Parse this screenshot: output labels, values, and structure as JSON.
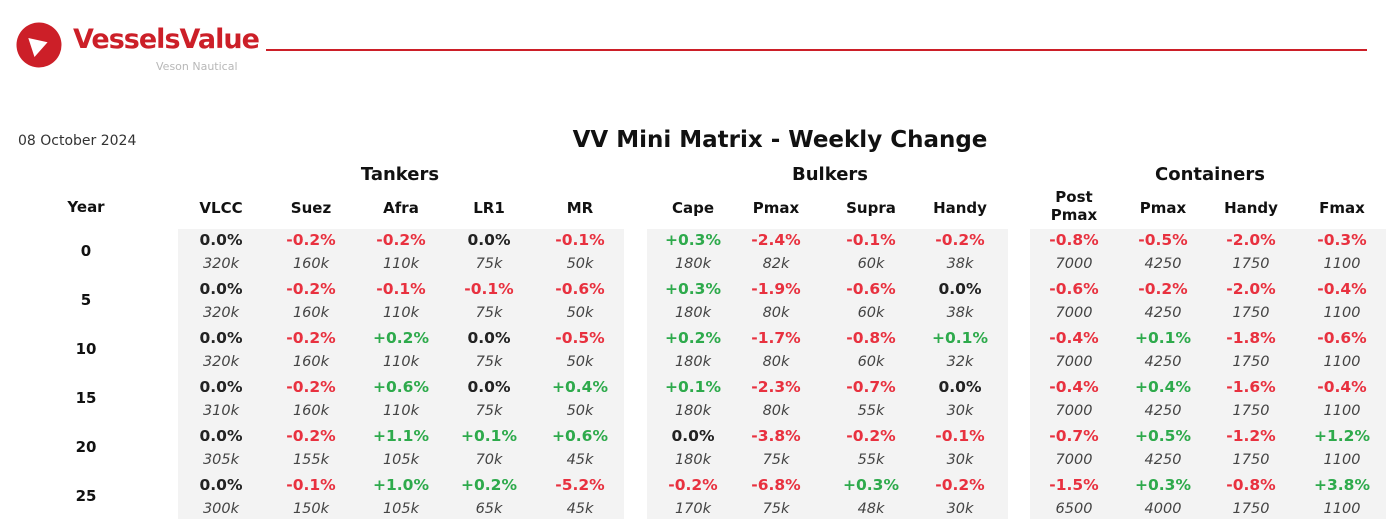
{
  "brand": {
    "name": "VesselsValue",
    "sub": "Veson Nautical",
    "accent": "#cc1f28"
  },
  "date": "08 October 2024",
  "title": "VV Mini Matrix - Weekly Change",
  "year_header": "Year",
  "colors": {
    "negative": "#e8313f",
    "positive": "#2eaa4c",
    "neutral": "#222222",
    "panel": "#f3f3f3"
  },
  "groups": [
    {
      "name": "Tankers",
      "columns": [
        "VLCC",
        "Suez",
        "Afra",
        "LR1",
        "MR"
      ]
    },
    {
      "name": "Bulkers",
      "columns": [
        "Cape",
        "Pmax",
        "Supra",
        "Handy"
      ]
    },
    {
      "name": "Containers",
      "columns": [
        "Post Pmax",
        "Pmax",
        "Handy",
        "Fmax"
      ]
    }
  ],
  "rows": [
    {
      "year": "0",
      "changes": [
        "0.0%",
        "-0.2%",
        "-0.2%",
        "0.0%",
        "-0.1%",
        "+0.3%",
        "-2.4%",
        "-0.1%",
        "-0.2%",
        "-0.8%",
        "-0.5%",
        "-2.0%",
        "-0.3%"
      ],
      "sizes": [
        "320k",
        "160k",
        "110k",
        "75k",
        "50k",
        "180k",
        "82k",
        "60k",
        "38k",
        "7000",
        "4250",
        "1750",
        "1100"
      ]
    },
    {
      "year": "5",
      "changes": [
        "0.0%",
        "-0.2%",
        "-0.1%",
        "-0.1%",
        "-0.6%",
        "+0.3%",
        "-1.9%",
        "-0.6%",
        "0.0%",
        "-0.6%",
        "-0.2%",
        "-2.0%",
        "-0.4%"
      ],
      "sizes": [
        "320k",
        "160k",
        "110k",
        "75k",
        "50k",
        "180k",
        "80k",
        "60k",
        "38k",
        "7000",
        "4250",
        "1750",
        "1100"
      ]
    },
    {
      "year": "10",
      "changes": [
        "0.0%",
        "-0.2%",
        "+0.2%",
        "0.0%",
        "-0.5%",
        "+0.2%",
        "-1.7%",
        "-0.8%",
        "+0.1%",
        "-0.4%",
        "+0.1%",
        "-1.8%",
        "-0.6%"
      ],
      "sizes": [
        "320k",
        "160k",
        "110k",
        "75k",
        "50k",
        "180k",
        "80k",
        "60k",
        "32k",
        "7000",
        "4250",
        "1750",
        "1100"
      ]
    },
    {
      "year": "15",
      "changes": [
        "0.0%",
        "-0.2%",
        "+0.6%",
        "0.0%",
        "+0.4%",
        "+0.1%",
        "-2.3%",
        "-0.7%",
        "0.0%",
        "-0.4%",
        "+0.4%",
        "-1.6%",
        "-0.4%"
      ],
      "sizes": [
        "310k",
        "160k",
        "110k",
        "75k",
        "50k",
        "180k",
        "80k",
        "55k",
        "30k",
        "7000",
        "4250",
        "1750",
        "1100"
      ]
    },
    {
      "year": "20",
      "changes": [
        "0.0%",
        "-0.2%",
        "+1.1%",
        "+0.1%",
        "+0.6%",
        "0.0%",
        "-3.8%",
        "-0.2%",
        "-0.1%",
        "-0.7%",
        "+0.5%",
        "-1.2%",
        "+1.2%"
      ],
      "sizes": [
        "305k",
        "155k",
        "105k",
        "70k",
        "45k",
        "180k",
        "75k",
        "55k",
        "30k",
        "7000",
        "4250",
        "1750",
        "1100"
      ]
    },
    {
      "year": "25",
      "changes": [
        "0.0%",
        "-0.1%",
        "+1.0%",
        "+0.2%",
        "-5.2%",
        "-0.2%",
        "-6.8%",
        "+0.3%",
        "-0.2%",
        "-1.5%",
        "+0.3%",
        "-0.8%",
        "+3.8%"
      ],
      "sizes": [
        "300k",
        "150k",
        "105k",
        "65k",
        "45k",
        "170k",
        "75k",
        "48k",
        "30k",
        "6500",
        "4000",
        "1750",
        "1100"
      ]
    }
  ]
}
